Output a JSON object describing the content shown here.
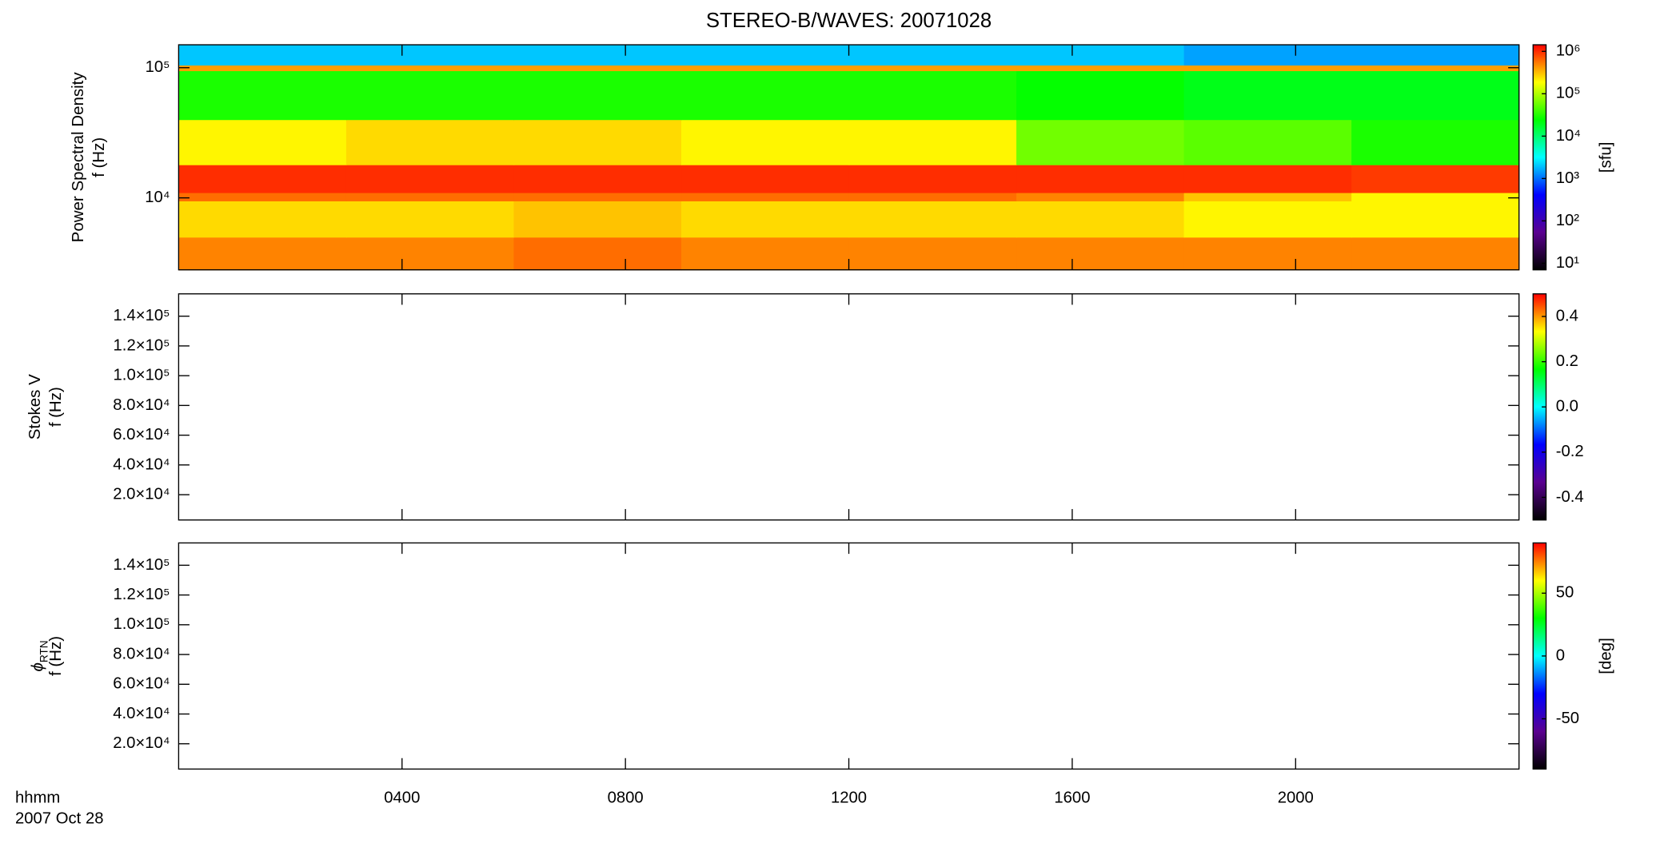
{
  "title": "STEREO-B/WAVES: 20071028",
  "x_label": [
    "hhmm",
    "2007 Oct 28"
  ],
  "x_axis": {
    "xlim": [
      0,
      24
    ],
    "xticks": [
      {
        "value": 4,
        "label": "0400"
      },
      {
        "value": 8,
        "label": "0800"
      },
      {
        "value": 12,
        "label": "1200"
      },
      {
        "value": 16,
        "label": "1600"
      },
      {
        "value": 20,
        "label": "2000"
      }
    ]
  },
  "chart_data": [
    {
      "type": "heatmap",
      "ylabel": [
        "Power Spectral Density",
        "f (Hz)"
      ],
      "ylog": true,
      "ylim": [
        2800,
        150000
      ],
      "yticks": [
        {
          "value": 10000,
          "label": "10⁴"
        },
        {
          "value": 100000,
          "label": "10⁵"
        }
      ],
      "x_edges": [
        0,
        3,
        6,
        9,
        12,
        15,
        18,
        21,
        24
      ],
      "y_edges": [
        2800,
        5000,
        9500,
        11000,
        18000,
        40000,
        95000,
        105000,
        150000
      ],
      "z": [
        [
          500000,
          500000,
          600000,
          500000,
          500000,
          500000,
          500000,
          500000
        ],
        [
          250000,
          250000,
          300000,
          250000,
          250000,
          250000,
          200000,
          200000
        ],
        [
          600000,
          600000,
          600000,
          600000,
          600000,
          500000,
          300000,
          200000
        ],
        [
          1000000,
          1000000,
          1000000,
          1000000,
          1000000,
          1000000,
          1000000,
          900000
        ],
        [
          200000,
          250000,
          250000,
          200000,
          200000,
          60000,
          50000,
          30000
        ],
        [
          30000,
          30000,
          30000,
          30000,
          30000,
          25000,
          20000,
          20000
        ],
        [
          400000,
          400000,
          400000,
          400000,
          400000,
          400000,
          400000,
          400000
        ],
        [
          2000,
          2000,
          2000,
          2000,
          2000,
          2000,
          1500,
          1500
        ]
      ],
      "colorbar": {
        "log": true,
        "lim": [
          7,
          1430000
        ],
        "ticks": [
          {
            "value": 10,
            "label": "10¹"
          },
          {
            "value": 100,
            "label": "10²"
          },
          {
            "value": 1000,
            "label": "10³"
          },
          {
            "value": 10000,
            "label": "10⁴"
          },
          {
            "value": 100000,
            "label": "10⁵"
          },
          {
            "value": 1000000,
            "label": "10⁶"
          }
        ],
        "label": "[sfu]",
        "colors": [
          "#000000",
          "#5a0090",
          "#0000ff",
          "#00ffff",
          "#00ff00",
          "#ffff00",
          "#ff0000"
        ]
      }
    },
    {
      "type": "heatmap",
      "ylabel": [
        "Stokes V",
        "f (Hz)"
      ],
      "ylog": false,
      "ylim": [
        3000,
        155000
      ],
      "yticks": [
        {
          "value": 20000,
          "label": "2.0×10⁴"
        },
        {
          "value": 40000,
          "label": "4.0×10⁴"
        },
        {
          "value": 60000,
          "label": "6.0×10⁴"
        },
        {
          "value": 80000,
          "label": "8.0×10⁴"
        },
        {
          "value": 100000,
          "label": "1.0×10⁵"
        },
        {
          "value": 120000,
          "label": "1.2×10⁵"
        },
        {
          "value": 140000,
          "label": "1.4×10⁵"
        }
      ],
      "colorbar": {
        "log": false,
        "lim": [
          -0.5,
          0.5
        ],
        "ticks": [
          -0.4,
          -0.2,
          {
            "value": 0,
            "label": "0.0"
          },
          0.2,
          0.4
        ],
        "colors": [
          "#000000",
          "#5a0090",
          "#0000ff",
          "#00ffff",
          "#00ff00",
          "#ffff00",
          "#ff0000"
        ]
      }
    },
    {
      "type": "heatmap",
      "ylabel_symbol": "ϕ",
      "ylabel_subscript": "RTN",
      "ylabel": [
        "f (Hz)"
      ],
      "ylog": false,
      "ylim": [
        3000,
        155000
      ],
      "yticks": [
        {
          "value": 20000,
          "label": "2.0×10⁴"
        },
        {
          "value": 40000,
          "label": "4.0×10⁴"
        },
        {
          "value": 60000,
          "label": "6.0×10⁴"
        },
        {
          "value": 80000,
          "label": "8.0×10⁴"
        },
        {
          "value": 100000,
          "label": "1.0×10⁵"
        },
        {
          "value": 120000,
          "label": "1.2×10⁵"
        },
        {
          "value": 140000,
          "label": "1.4×10⁵"
        }
      ],
      "colorbar": {
        "log": false,
        "lim": [
          -90,
          90
        ],
        "ticks": [
          -50,
          0,
          50
        ],
        "label": "[deg]",
        "colors": [
          "#000000",
          "#5a0090",
          "#0000ff",
          "#00ffff",
          "#00ff00",
          "#ffff00",
          "#ff0000"
        ]
      }
    }
  ]
}
